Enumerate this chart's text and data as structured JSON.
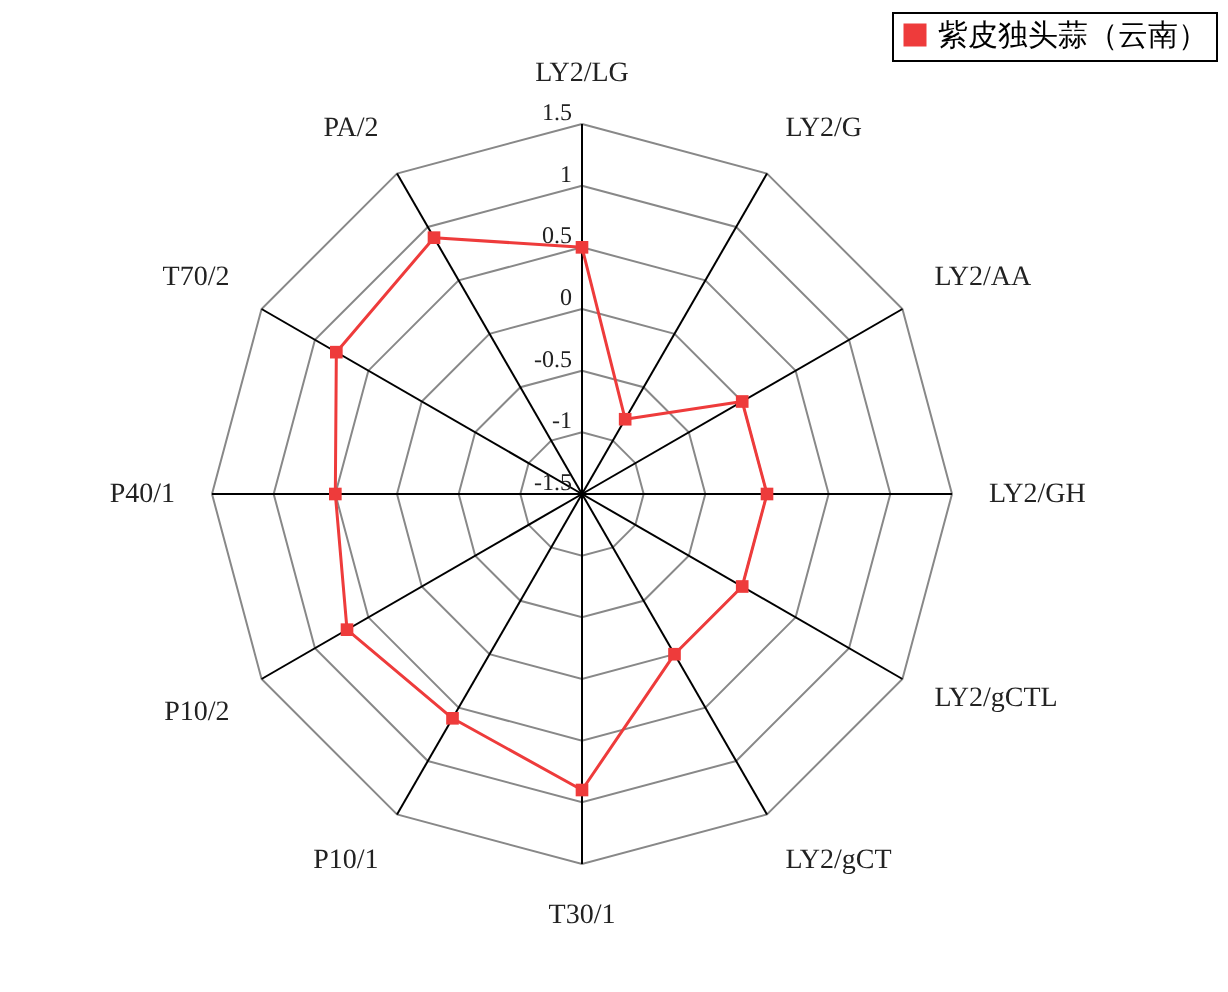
{
  "chart_data": {
    "type": "radar",
    "categories": [
      "LY2/LG",
      "LY2/G",
      "LY2/AA",
      "LY2/GH",
      "LY2/gCTL",
      "LY2/gCT",
      "T30/1",
      "P10/1",
      "P10/2",
      "P40/1",
      "T70/2",
      "PA/2"
    ],
    "series": [
      {
        "name": "紫皮独头蒜（云南）",
        "color": "#ee3b3b",
        "values": [
          0.5,
          -0.8,
          0.0,
          0.0,
          0.0,
          0.0,
          0.9,
          0.6,
          0.7,
          0.5,
          0.8,
          0.9
        ]
      }
    ],
    "ylim": [
      -1.5,
      1.5
    ],
    "yticks": [
      -1.5,
      -1.0,
      -0.5,
      0.0,
      0.5,
      1.0,
      1.5
    ],
    "grid": true,
    "legend": "top right",
    "marker": "square",
    "line_style": "solid"
  }
}
